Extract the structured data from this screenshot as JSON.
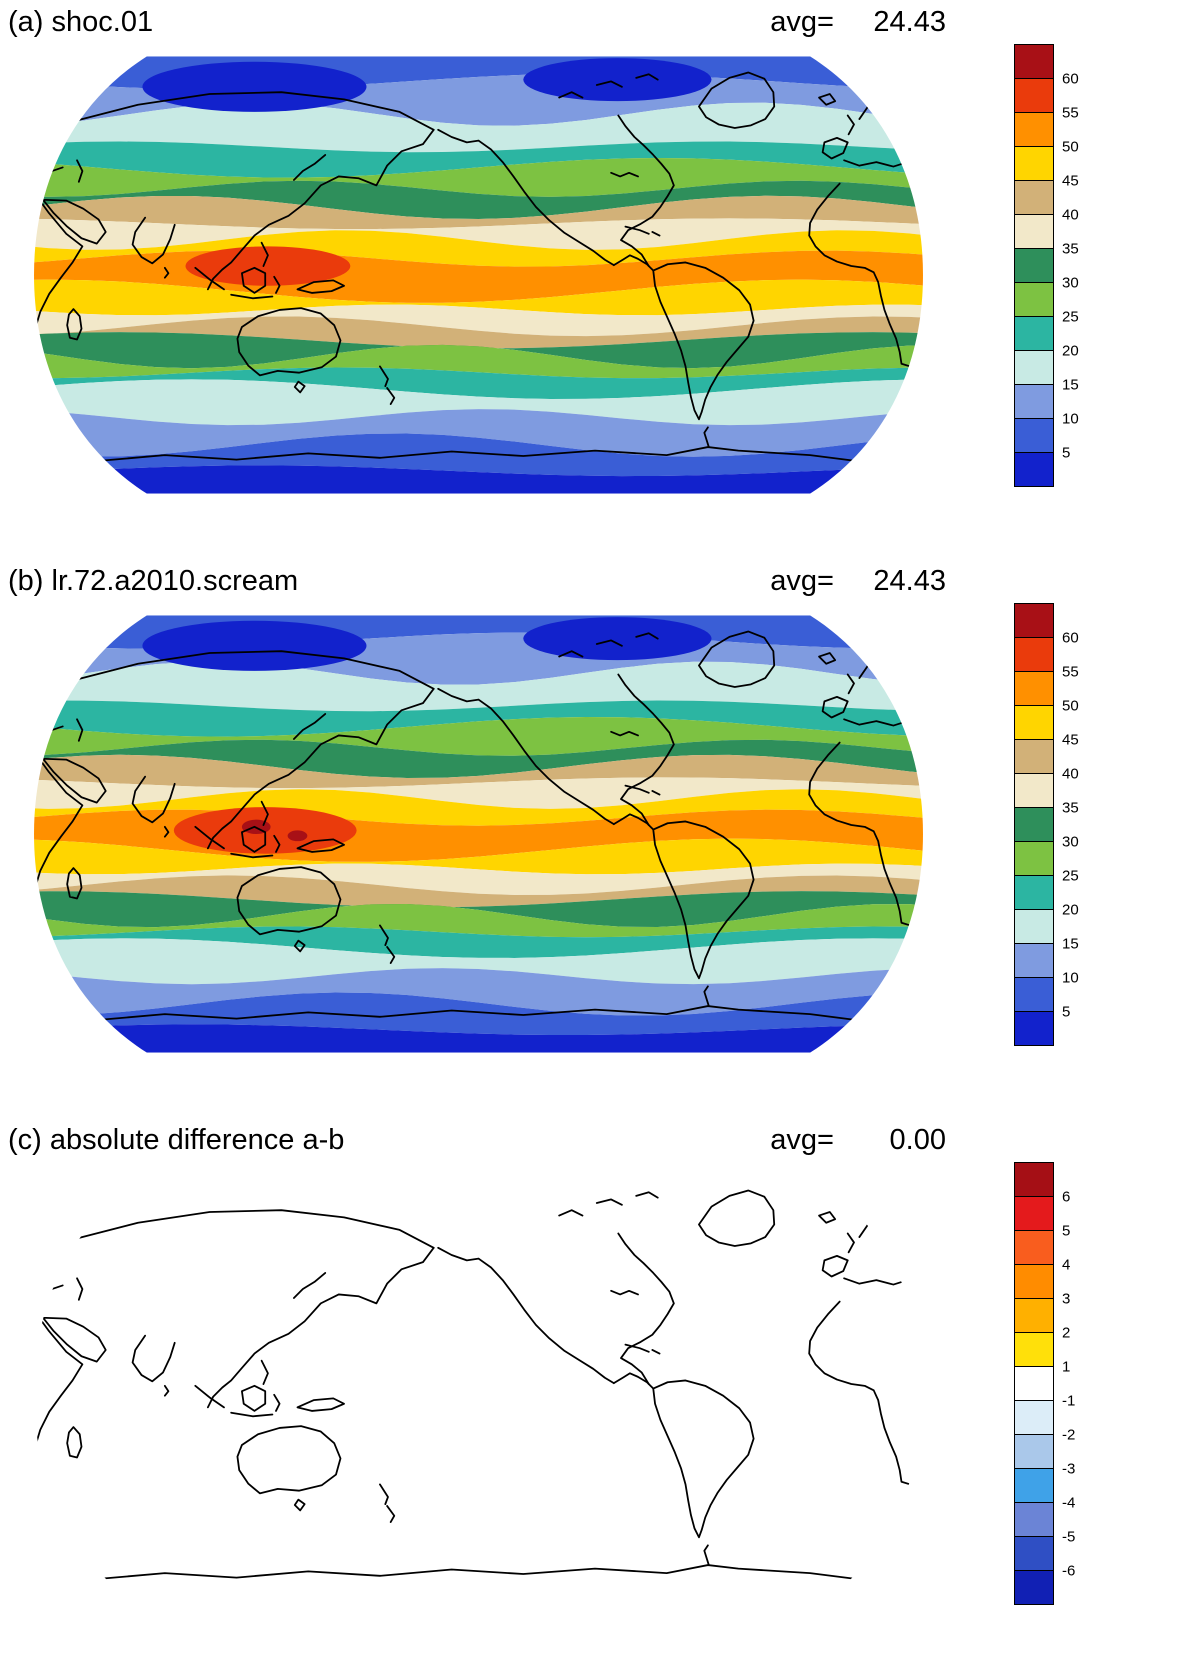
{
  "panels": [
    {
      "id": "a",
      "title": "(a) shoc.01",
      "avg_label": "avg=",
      "avg_value": "24.43",
      "colorbar": {
        "tick_labels": [
          "60",
          "55",
          "50",
          "45",
          "40",
          "35",
          "30",
          "25",
          "20",
          "15",
          "10",
          "5"
        ],
        "colors_top_to_bottom": [
          "#a81016",
          "#ea3b0c",
          "#ff9000",
          "#ffd500",
          "#d2b178",
          "#f2e8c9",
          "#2e8f5b",
          "#7dc242",
          "#2cb5a2",
          "#c8eae4",
          "#7f9be0",
          "#3a5ed6",
          "#1222cc"
        ]
      }
    },
    {
      "id": "b",
      "title": "(b) lr.72.a2010.scream",
      "avg_label": "avg=",
      "avg_value": "24.43",
      "colorbar": {
        "tick_labels": [
          "60",
          "55",
          "50",
          "45",
          "40",
          "35",
          "30",
          "25",
          "20",
          "15",
          "10",
          "5"
        ],
        "colors_top_to_bottom": [
          "#a81016",
          "#ea3b0c",
          "#ff9000",
          "#ffd500",
          "#d2b178",
          "#f2e8c9",
          "#2e8f5b",
          "#7dc242",
          "#2cb5a2",
          "#c8eae4",
          "#7f9be0",
          "#3a5ed6",
          "#1222cc"
        ]
      }
    },
    {
      "id": "c",
      "title": "(c) absolute difference a-b",
      "avg_label": "avg=",
      "avg_value": "0.00",
      "colorbar": {
        "tick_labels": [
          "6",
          "5",
          "4",
          "3",
          "2",
          "1",
          "-1",
          "-2",
          "-3",
          "-4",
          "-5",
          "-6"
        ],
        "colors_top_to_bottom": [
          "#a50f15",
          "#e41a1c",
          "#f95d1e",
          "#ff8c00",
          "#ffb000",
          "#ffe00a",
          "#ffffff",
          "#dcedf8",
          "#aac8ea",
          "#3fa2e8",
          "#6b84d6",
          "#2f4fc4",
          "#1120b4"
        ]
      }
    }
  ],
  "chart_data": [
    {
      "type": "heatmap",
      "subtype": "global_map_filled_contour_robinson",
      "panel": "a",
      "title": "(a) shoc.01",
      "stat_label": "avg=",
      "stat_value": 24.43,
      "legend_position": "right",
      "colorbar_tick_values": [
        60,
        55,
        50,
        45,
        40,
        35,
        30,
        25,
        20,
        15,
        10,
        5
      ],
      "colorbar_colors_top_to_bottom": [
        "#a81016",
        "#ea3b0c",
        "#ff9000",
        "#ffd500",
        "#d2b178",
        "#f2e8c9",
        "#2e8f5b",
        "#7dc242",
        "#2cb5a2",
        "#c8eae4",
        "#7f9be0",
        "#3a5ed6",
        "#1222cc"
      ],
      "pattern": "zonal bands: dark blue minima at poles, blue/cyan high latitudes, green mid-latitudes, tan/yellow/orange tropical maximum with orange-red core over the Maritime Continent and western Pacific; black coastlines overlaid"
    },
    {
      "type": "heatmap",
      "subtype": "global_map_filled_contour_robinson",
      "panel": "b",
      "title": "(b) lr.72.a2010.scream",
      "stat_label": "avg=",
      "stat_value": 24.43,
      "legend_position": "right",
      "colorbar_tick_values": [
        60,
        55,
        50,
        45,
        40,
        35,
        30,
        25,
        20,
        15,
        10,
        5
      ],
      "colorbar_colors_top_to_bottom": [
        "#a81016",
        "#ea3b0c",
        "#ff9000",
        "#ffd500",
        "#d2b178",
        "#f2e8c9",
        "#2e8f5b",
        "#7dc242",
        "#2cb5a2",
        "#c8eae4",
        "#7f9be0",
        "#3a5ed6",
        "#1222cc"
      ],
      "pattern": "nearly identical zonal structure to panel (a), with slightly larger orange-red tropical core including small dark-red spots over the Maritime Continent"
    },
    {
      "type": "heatmap",
      "subtype": "global_map_filled_contour_robinson",
      "panel": "c",
      "title": "(c) absolute difference a-b",
      "stat_label": "avg=",
      "stat_value": 0.0,
      "legend_position": "right",
      "colorbar_tick_values": [
        6,
        5,
        4,
        3,
        2,
        1,
        -1,
        -2,
        -3,
        -4,
        -5,
        -6
      ],
      "colorbar_colors_top_to_bottom": [
        "#a50f15",
        "#e41a1c",
        "#f95d1e",
        "#ff8c00",
        "#ffb000",
        "#ffe00a",
        "#ffffff",
        "#dcedf8",
        "#aac8ea",
        "#3fa2e8",
        "#6b84d6",
        "#2f4fc4",
        "#1120b4"
      ],
      "pattern": "difference field is uniformly zero (white within the -1..1 bin); map appears blank white with black coastlines only"
    }
  ]
}
